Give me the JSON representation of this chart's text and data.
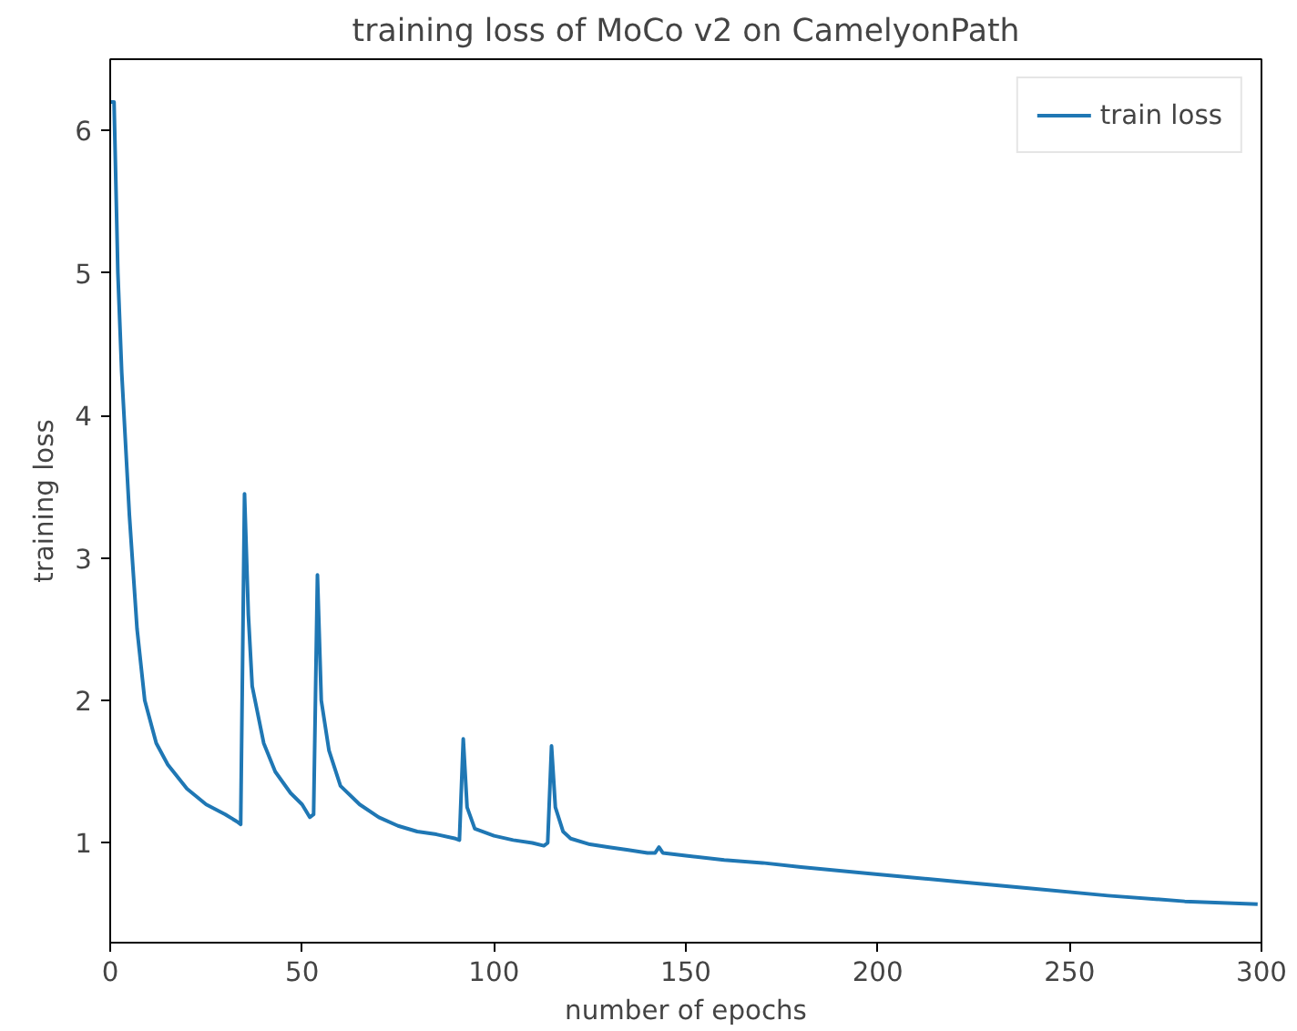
{
  "chart_data": {
    "type": "line",
    "title": "training loss of MoCo v2 on CamelyonPath",
    "xlabel": "number of epochs",
    "ylabel": "training loss",
    "xlim": [
      0,
      300
    ],
    "xticks": [
      0,
      50,
      100,
      150,
      200,
      250,
      300
    ],
    "ylim": [
      0.3,
      6.5
    ],
    "yticks": [
      1,
      2,
      3,
      4,
      5,
      6
    ],
    "grid": false,
    "legend": "top right",
    "marker": "none",
    "line_style": "solid",
    "series": [
      {
        "name": "train loss",
        "color": "#1f77b4",
        "x": [
          0,
          1,
          2,
          3,
          5,
          7,
          9,
          12,
          15,
          20,
          25,
          30,
          33,
          34,
          35,
          36,
          37,
          40,
          43,
          47,
          50,
          52,
          53,
          54,
          55,
          57,
          60,
          65,
          70,
          75,
          80,
          85,
          90,
          91,
          92,
          93,
          95,
          100,
          105,
          110,
          113,
          114,
          115,
          116,
          118,
          120,
          125,
          130,
          135,
          140,
          142,
          143,
          144,
          150,
          160,
          170,
          180,
          200,
          220,
          240,
          260,
          280,
          299
        ],
        "values": [
          6.2,
          6.2,
          5.0,
          4.3,
          3.3,
          2.5,
          2.0,
          1.7,
          1.55,
          1.38,
          1.27,
          1.2,
          1.15,
          1.13,
          3.45,
          2.6,
          2.1,
          1.7,
          1.5,
          1.35,
          1.27,
          1.18,
          1.2,
          2.88,
          2.0,
          1.65,
          1.4,
          1.27,
          1.18,
          1.12,
          1.08,
          1.06,
          1.03,
          1.02,
          1.73,
          1.25,
          1.1,
          1.05,
          1.02,
          1.0,
          0.98,
          1.0,
          1.68,
          1.25,
          1.08,
          1.03,
          0.99,
          0.97,
          0.95,
          0.93,
          0.93,
          0.97,
          0.93,
          0.91,
          0.88,
          0.86,
          0.83,
          0.78,
          0.73,
          0.68,
          0.63,
          0.59,
          0.57
        ]
      }
    ]
  }
}
